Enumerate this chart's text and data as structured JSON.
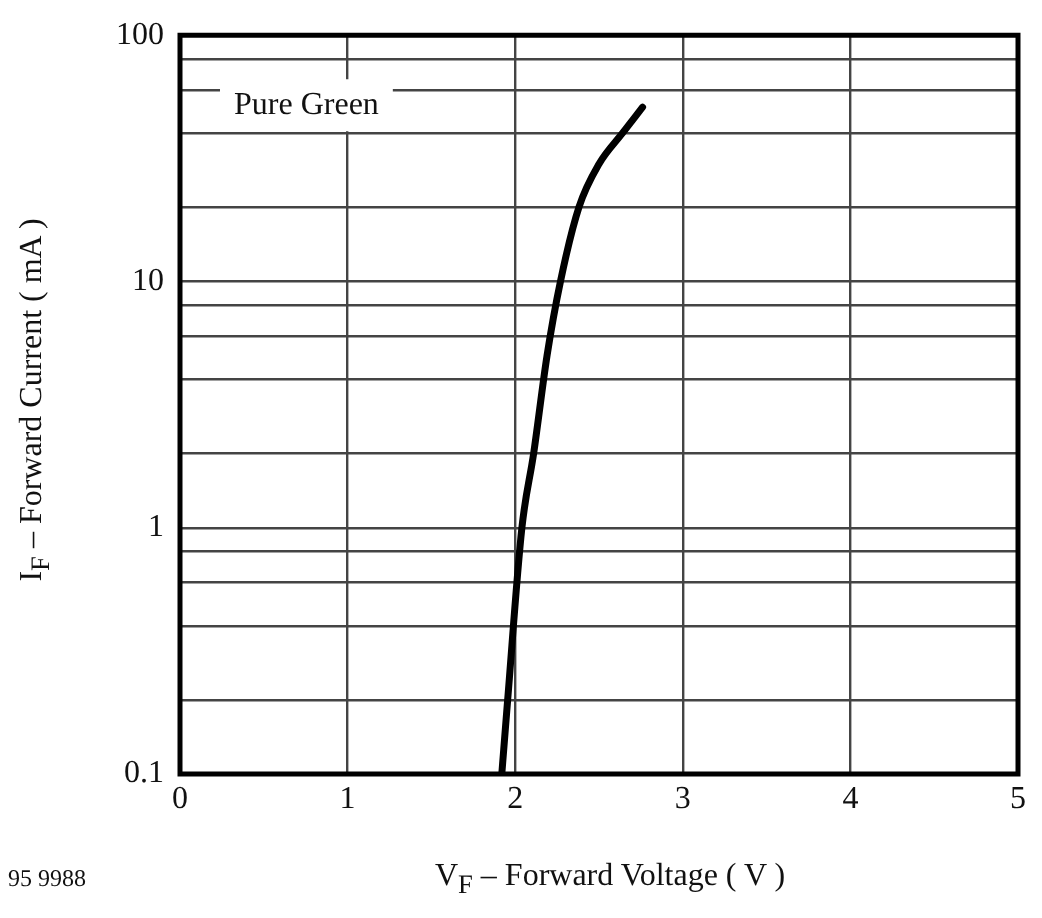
{
  "chart_data": {
    "type": "line",
    "xlabel": "V$_{F}$ – Forward Voltage ( V )",
    "ylabel": "I$_{F}$ – Forward Current ( mA )",
    "annotations": [
      "Pure Green",
      "95 9988"
    ],
    "x": [
      1.92,
      1.955,
      2.04,
      2.11,
      2.19,
      2.27,
      2.38,
      2.5,
      2.64,
      2.76
    ],
    "series": [
      {
        "color": "#000000",
        "values": [
          0.1,
          0.2,
          1,
          2,
          5,
          10,
          20,
          30,
          40,
          51
        ]
      }
    ],
    "xlim": [
      0,
      5
    ],
    "xticks": [
      0,
      1,
      2,
      3,
      4,
      5
    ],
    "ylim": [
      0.1,
      100
    ],
    "yticks": [
      0.1,
      {
        "value": 0.2,
        "label": null
      },
      {
        "value": 0.4,
        "label": null
      },
      {
        "value": 0.6,
        "label": null
      },
      {
        "value": 0.8,
        "label": null
      },
      1,
      {
        "value": 2,
        "label": null
      },
      {
        "value": 4,
        "label": null
      },
      {
        "value": 6,
        "label": null
      },
      {
        "value": 8,
        "label": null
      },
      10,
      {
        "value": 20,
        "label": null
      },
      {
        "value": 40,
        "label": null
      },
      {
        "value": 60,
        "label": null
      },
      {
        "value": 80,
        "label": null
      },
      100
    ],
    "log": "y",
    "grid": true,
    "legend": false,
    "marker": "none",
    "line_style": "solid"
  }
}
